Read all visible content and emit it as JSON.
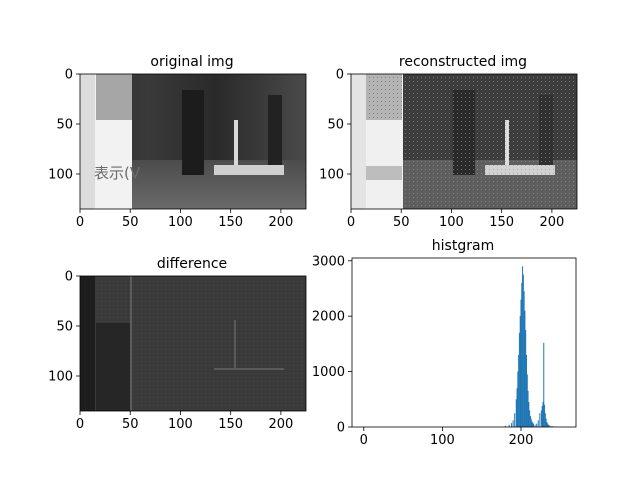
{
  "chart_data": [
    {
      "type": "image",
      "title": "original img",
      "xlim": [
        0,
        225
      ],
      "ylim": [
        135,
        0
      ],
      "xticks": [
        0,
        50,
        100,
        150,
        200
      ],
      "yticks": [
        0,
        50,
        100
      ],
      "overlay_text": "表示(V"
    },
    {
      "type": "image",
      "title": "reconstructed img",
      "xlim": [
        0,
        225
      ],
      "ylim": [
        135,
        0
      ],
      "xticks": [
        0,
        50,
        100,
        150,
        200
      ],
      "yticks": [
        0,
        50,
        100
      ]
    },
    {
      "type": "image",
      "title": "difference",
      "xlim": [
        0,
        225
      ],
      "ylim": [
        135,
        0
      ],
      "xticks": [
        0,
        50,
        100,
        150,
        200
      ],
      "yticks": [
        0,
        50,
        100
      ]
    },
    {
      "type": "bar",
      "title": "histgram",
      "xlim": [
        -15,
        270
      ],
      "ylim": [
        0,
        3050
      ],
      "xticks": [
        0,
        100,
        200
      ],
      "yticks": [
        0,
        1000,
        2000,
        3000
      ],
      "bar_color": "#1f77b4",
      "x": [
        180,
        185,
        188,
        190,
        192,
        194,
        195,
        196,
        197,
        198,
        199,
        200,
        201,
        202,
        203,
        204,
        205,
        206,
        207,
        208,
        209,
        210,
        211,
        212,
        213,
        214,
        215,
        216,
        218,
        220,
        222,
        224,
        226,
        227,
        228,
        229,
        230,
        231,
        232,
        233,
        234,
        235,
        236,
        238,
        240,
        244
      ],
      "values": [
        20,
        40,
        70,
        120,
        250,
        500,
        700,
        1000,
        1300,
        1700,
        2000,
        2300,
        2600,
        2900,
        2750,
        2450,
        2100,
        1750,
        1300,
        950,
        650,
        450,
        300,
        200,
        150,
        100,
        80,
        60,
        40,
        60,
        120,
        250,
        300,
        380,
        450,
        1520,
        400,
        250,
        150,
        90,
        60,
        40,
        30,
        20,
        15,
        10
      ]
    }
  ]
}
